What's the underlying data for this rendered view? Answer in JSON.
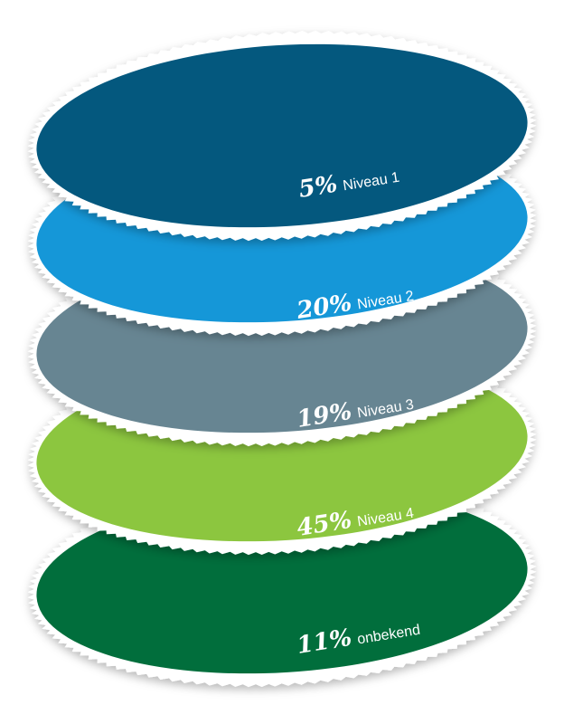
{
  "chart_data": {
    "type": "pie",
    "title": "",
    "unit": "%",
    "categories": [
      "Niveau 1",
      "Niveau 2",
      "Niveau 3",
      "Niveau 4",
      "onbekend"
    ],
    "values": [
      5,
      20,
      19,
      45,
      11
    ],
    "value_labels": [
      "5%",
      "20%",
      "19%",
      "45%",
      "11%"
    ],
    "colors": [
      "#04587e",
      "#1597d8",
      "#678592",
      "#8cc63f",
      "#016e3c"
    ]
  }
}
